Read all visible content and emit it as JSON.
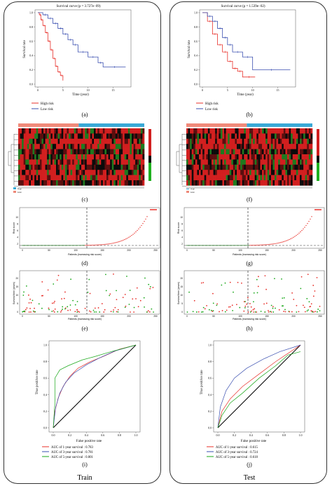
{
  "figure": {
    "train_label": "Train",
    "test_label": "Test",
    "panel_labels": [
      "(a)",
      "(b)",
      "(c)",
      "(d)",
      "(e)",
      "(f)",
      "(g)",
      "(h)",
      "(i)",
      "(j)"
    ]
  },
  "colors": {
    "high_risk": "#e8302a",
    "low_risk": "#3a4fb0",
    "green": "#1aa81a",
    "heat_red": "#d21f1f",
    "heat_green": "#1fb01f",
    "test_bar": "#39a9d6"
  },
  "survival": {
    "train": {
      "title": "Survival curve (p = 3.727e−09)",
      "xlabel": "Time (year)",
      "ylabel": "Survival rate",
      "legend": [
        "High risk",
        "Low risk"
      ],
      "xticks": [
        0,
        5,
        10,
        15
      ],
      "yticks": [
        "0.0",
        "0.2",
        "0.4",
        "0.6",
        "0.8",
        "1.0"
      ],
      "high": [
        [
          0,
          1
        ],
        [
          0.3,
          0.97
        ],
        [
          0.6,
          0.9
        ],
        [
          1,
          0.82
        ],
        [
          1.5,
          0.72
        ],
        [
          2,
          0.6
        ],
        [
          2.5,
          0.48
        ],
        [
          3,
          0.36
        ],
        [
          3.5,
          0.25
        ],
        [
          4,
          0.17
        ],
        [
          4.5,
          0.12
        ],
        [
          5,
          0.1
        ],
        [
          5,
          0.05
        ]
      ],
      "low": [
        [
          0,
          1
        ],
        [
          1,
          0.97
        ],
        [
          2,
          0.92
        ],
        [
          3,
          0.85
        ],
        [
          4,
          0.78
        ],
        [
          5,
          0.7
        ],
        [
          6,
          0.62
        ],
        [
          7,
          0.55
        ],
        [
          8,
          0.45
        ],
        [
          10,
          0.38
        ],
        [
          12,
          0.3
        ],
        [
          13,
          0.24
        ],
        [
          17.5,
          0.24
        ]
      ]
    },
    "test": {
      "title": "Survival curve (p = 1.539e−02)",
      "xlabel": "Time (year)",
      "ylabel": "Survival rate",
      "legend": [
        "High risk",
        "Low risk"
      ],
      "xticks": [
        0,
        5,
        10,
        15
      ],
      "yticks": [
        "0.0",
        "0.2",
        "0.4",
        "0.6",
        "0.8",
        "1.0"
      ],
      "high": [
        [
          0,
          1
        ],
        [
          1,
          0.88
        ],
        [
          2,
          0.7
        ],
        [
          3,
          0.55
        ],
        [
          4,
          0.45
        ],
        [
          5,
          0.32
        ],
        [
          6,
          0.22
        ],
        [
          7,
          0.18
        ],
        [
          8,
          0.1
        ],
        [
          10.5,
          0.1
        ]
      ],
      "low": [
        [
          0,
          1
        ],
        [
          1,
          0.95
        ],
        [
          2,
          0.88
        ],
        [
          3,
          0.78
        ],
        [
          4,
          0.65
        ],
        [
          5,
          0.55
        ],
        [
          6,
          0.45
        ],
        [
          8,
          0.38
        ],
        [
          10,
          0.2
        ],
        [
          17.5,
          0.2
        ]
      ]
    }
  },
  "risk_score": {
    "xlabel": "Patients (increasing risk score)",
    "ylabel": "Risk score",
    "train": {
      "xticks": [
        "0",
        "50",
        "100",
        "150",
        "200",
        "250"
      ],
      "yticks": [
        "2",
        "4",
        "6",
        "8",
        "10"
      ]
    },
    "test": {
      "xticks": [
        "0",
        "50",
        "100",
        "150",
        "200",
        "250"
      ],
      "yticks": [
        "2",
        "4",
        "6",
        "8",
        "10"
      ]
    }
  },
  "survival_time": {
    "xlabel": "Patients (increasing risk score)",
    "ylabel": "Survival time (years)",
    "train": {
      "xticks": [
        "0",
        "50",
        "100",
        "150",
        "200",
        "250"
      ],
      "yticks": [
        "0",
        "5",
        "10",
        "15",
        "20"
      ]
    },
    "test": {
      "xticks": [
        "0",
        "50",
        "100",
        "150",
        "200",
        "250"
      ],
      "yticks": [
        "0",
        "5",
        "10",
        "15",
        "20"
      ]
    }
  },
  "roc": {
    "xlabel": "False positive rate",
    "ylabel": "True positive rate",
    "ticks": [
      "0.0",
      "0.2",
      "0.4",
      "0.6",
      "0.8",
      "1.0"
    ],
    "train": {
      "legend": [
        "AUC of 1-year survival : 0.783",
        "AUC of 3-year survival : 0.781",
        "AUC of 5-year survival : 0.801"
      ]
    },
    "test": {
      "legend": [
        "AUC of 1-year survival : 0.615",
        "AUC of 3-year survival : 0.724",
        "AUC of 5-year survival : 0.618"
      ]
    }
  },
  "heatmap": {
    "legend": [
      "High",
      "Low"
    ]
  },
  "chart_data": [
    {
      "type": "line",
      "title": "Survival curve (p = 3.727e−09)",
      "xlabel": "Time (year)",
      "ylabel": "Survival rate",
      "xlim": [
        0,
        18
      ],
      "ylim": [
        0,
        1
      ],
      "series": [
        {
          "name": "High risk",
          "x": [
            0,
            1,
            2,
            3,
            4,
            5
          ],
          "values": [
            1,
            0.82,
            0.6,
            0.36,
            0.17,
            0.05
          ]
        },
        {
          "name": "Low risk",
          "x": [
            0,
            3,
            6,
            9,
            13,
            17.5
          ],
          "values": [
            1,
            0.85,
            0.62,
            0.42,
            0.24,
            0.24
          ]
        }
      ]
    },
    {
      "type": "line",
      "title": "Survival curve (p = 1.539e−02)",
      "xlabel": "Time (year)",
      "ylabel": "Survival rate",
      "xlim": [
        0,
        18
      ],
      "ylim": [
        0,
        1
      ],
      "series": [
        {
          "name": "High risk",
          "x": [
            0,
            2,
            4,
            6,
            8,
            10.5
          ],
          "values": [
            1,
            0.7,
            0.45,
            0.22,
            0.1,
            0.1
          ]
        },
        {
          "name": "Low risk",
          "x": [
            0,
            2,
            4,
            6,
            10,
            17.5
          ],
          "values": [
            1,
            0.88,
            0.65,
            0.45,
            0.2,
            0.2
          ]
        }
      ]
    },
    {
      "type": "line",
      "xlabel": "False positive rate",
      "ylabel": "True positive rate",
      "xlim": [
        0,
        1
      ],
      "ylim": [
        0,
        1
      ],
      "series": [
        {
          "name": "AUC of 1-year survival : 0.783",
          "values": [
            0.783
          ]
        },
        {
          "name": "AUC of 3-year survival : 0.781",
          "values": [
            0.781
          ]
        },
        {
          "name": "AUC of 5-year survival : 0.801",
          "values": [
            0.801
          ]
        }
      ]
    },
    {
      "type": "line",
      "xlabel": "False positive rate",
      "ylabel": "True positive rate",
      "xlim": [
        0,
        1
      ],
      "ylim": [
        0,
        1
      ],
      "series": [
        {
          "name": "AUC of 1-year survival : 0.615",
          "values": [
            0.615
          ]
        },
        {
          "name": "AUC of 3-year survival : 0.724",
          "values": [
            0.724
          ]
        },
        {
          "name": "AUC of 5-year survival : 0.618",
          "values": [
            0.618
          ]
        }
      ]
    }
  ]
}
